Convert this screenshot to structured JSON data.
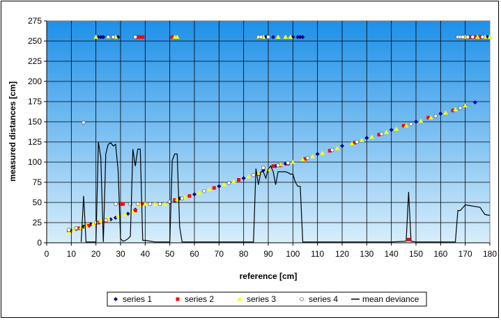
{
  "chart_data": {
    "type": "scatter",
    "title": "",
    "xlabel": "reference [cm]",
    "ylabel": "measured distances [cm]",
    "xlim": [
      0,
      180
    ],
    "ylim": [
      0,
      275
    ],
    "xticks": [
      0,
      10,
      20,
      30,
      40,
      50,
      60,
      70,
      80,
      90,
      100,
      110,
      120,
      130,
      140,
      150,
      160,
      170,
      180
    ],
    "yticks": [
      0,
      25,
      50,
      75,
      100,
      125,
      150,
      175,
      200,
      225,
      250,
      275
    ],
    "grid": true,
    "legend_position": "bottom",
    "background_gradient": [
      "#1e90e8",
      "#d8eefb"
    ],
    "series": [
      {
        "name": "series 1",
        "marker": "diamond",
        "color": "#00008b",
        "points": [
          [
            9,
            14
          ],
          [
            10,
            15
          ],
          [
            12,
            17
          ],
          [
            15,
            20
          ],
          [
            18,
            23
          ],
          [
            20,
            25
          ],
          [
            26,
            29
          ],
          [
            28,
            31
          ],
          [
            30,
            48
          ],
          [
            33,
            36
          ],
          [
            36,
            41
          ],
          [
            50,
            50
          ],
          [
            52,
            52
          ],
          [
            54,
            55
          ],
          [
            60,
            60
          ],
          [
            70,
            70
          ],
          [
            80,
            80
          ],
          [
            88,
            90
          ],
          [
            93,
            95
          ],
          [
            97,
            98
          ],
          [
            100,
            100
          ],
          [
            110,
            110
          ],
          [
            120,
            120
          ],
          [
            130,
            130
          ],
          [
            140,
            140
          ],
          [
            150,
            150
          ],
          [
            160,
            160
          ],
          [
            170,
            170
          ],
          [
            174,
            174
          ],
          [
            21,
            255
          ],
          [
            22,
            255
          ],
          [
            23,
            255
          ],
          [
            27,
            255
          ],
          [
            29,
            255
          ],
          [
            89,
            255
          ],
          [
            92,
            255
          ],
          [
            100,
            255
          ],
          [
            102,
            255
          ],
          [
            103,
            255
          ],
          [
            104,
            255
          ],
          [
            176,
            255
          ],
          [
            179,
            255
          ]
        ]
      },
      {
        "name": "series 2",
        "marker": "square",
        "color": "#ff0000",
        "points": [
          [
            9,
            15
          ],
          [
            13,
            18
          ],
          [
            17,
            21
          ],
          [
            21,
            25
          ],
          [
            24,
            27
          ],
          [
            30,
            48
          ],
          [
            31,
            48
          ],
          [
            36,
            40
          ],
          [
            39,
            48
          ],
          [
            52,
            53
          ],
          [
            58,
            58
          ],
          [
            68,
            68
          ],
          [
            78,
            78
          ],
          [
            86,
            85
          ],
          [
            92,
            95
          ],
          [
            95,
            96
          ],
          [
            98,
            98
          ],
          [
            105,
            104
          ],
          [
            115,
            114
          ],
          [
            125,
            124
          ],
          [
            135,
            134
          ],
          [
            145,
            145
          ],
          [
            147,
            4
          ],
          [
            155,
            155
          ],
          [
            165,
            164
          ],
          [
            37,
            255
          ],
          [
            38,
            255
          ],
          [
            39,
            255
          ],
          [
            51,
            255
          ],
          [
            170,
            255
          ],
          [
            172,
            255
          ],
          [
            174,
            255
          ],
          [
            176,
            255
          ]
        ]
      },
      {
        "name": "series 3",
        "marker": "triangle",
        "color": "#ffff00",
        "points": [
          [
            9,
            13
          ],
          [
            11,
            16
          ],
          [
            14,
            19
          ],
          [
            16,
            21
          ],
          [
            19,
            24
          ],
          [
            22,
            27
          ],
          [
            25,
            30
          ],
          [
            29,
            33
          ],
          [
            32,
            35
          ],
          [
            35,
            38
          ],
          [
            38,
            47
          ],
          [
            40,
            48
          ],
          [
            44,
            48
          ],
          [
            48,
            48
          ],
          [
            53,
            54
          ],
          [
            56,
            56
          ],
          [
            62,
            62
          ],
          [
            66,
            66
          ],
          [
            72,
            72
          ],
          [
            76,
            76
          ],
          [
            82,
            82
          ],
          [
            86,
            86
          ],
          [
            90,
            91
          ],
          [
            95,
            97
          ],
          [
            100,
            100
          ],
          [
            104,
            103
          ],
          [
            108,
            107
          ],
          [
            112,
            111
          ],
          [
            118,
            117
          ],
          [
            124,
            123
          ],
          [
            128,
            127
          ],
          [
            132,
            131
          ],
          [
            138,
            137
          ],
          [
            142,
            141
          ],
          [
            146,
            145
          ],
          [
            152,
            151
          ],
          [
            156,
            155
          ],
          [
            162,
            161
          ],
          [
            166,
            165
          ],
          [
            170,
            170
          ],
          [
            20,
            255
          ],
          [
            25,
            255
          ],
          [
            28,
            255
          ],
          [
            52,
            255
          ],
          [
            53,
            255
          ],
          [
            86,
            255
          ],
          [
            88,
            255
          ],
          [
            94,
            255
          ],
          [
            97,
            255
          ],
          [
            99,
            255
          ],
          [
            170,
            255
          ],
          [
            175,
            255
          ],
          [
            178,
            255
          ],
          [
            180,
            255
          ]
        ]
      },
      {
        "name": "series 4",
        "marker": "circle",
        "color": "#ffffff",
        "points": [
          [
            9,
            16
          ],
          [
            12,
            18
          ],
          [
            15,
            149
          ],
          [
            20,
            25
          ],
          [
            24,
            28
          ],
          [
            28,
            48
          ],
          [
            34,
            48
          ],
          [
            37,
            48
          ],
          [
            42,
            48
          ],
          [
            46,
            48
          ],
          [
            50,
            51
          ],
          [
            55,
            55
          ],
          [
            64,
            64
          ],
          [
            74,
            74
          ],
          [
            84,
            84
          ],
          [
            88,
            93
          ],
          [
            94,
            96
          ],
          [
            98,
            99
          ],
          [
            106,
            105
          ],
          [
            116,
            115
          ],
          [
            126,
            125
          ],
          [
            136,
            135
          ],
          [
            148,
            147
          ],
          [
            158,
            157
          ],
          [
            168,
            167
          ],
          [
            25,
            255
          ],
          [
            27,
            255
          ],
          [
            36,
            255
          ],
          [
            86,
            255
          ],
          [
            87,
            255
          ],
          [
            90,
            255
          ],
          [
            167,
            255
          ],
          [
            168,
            255
          ],
          [
            169,
            255
          ],
          [
            171,
            255
          ],
          [
            173,
            255
          ],
          [
            177,
            255
          ]
        ]
      },
      {
        "name": "mean deviance",
        "type": "line",
        "color": "#000000",
        "x": [
          14,
          15,
          16,
          20,
          21,
          22,
          23,
          24,
          25,
          26,
          27,
          28,
          29,
          30,
          31,
          32,
          33,
          34,
          35,
          36,
          37,
          38,
          39,
          40,
          44,
          48,
          50,
          51,
          52,
          53,
          54,
          55,
          60,
          80,
          84,
          85,
          86,
          87,
          88,
          89,
          90,
          91,
          92,
          93,
          94,
          95,
          96,
          97,
          98,
          99,
          100,
          101,
          102,
          103,
          104,
          110,
          130,
          140,
          146,
          147,
          148,
          150,
          160,
          165,
          166,
          167,
          168,
          170,
          172,
          174,
          176,
          178,
          180
        ],
        "y": [
          1,
          58,
          1,
          1,
          125,
          105,
          1,
          110,
          122,
          124,
          120,
          122,
          90,
          5,
          2,
          3,
          5,
          8,
          116,
          95,
          116,
          116,
          3,
          3,
          1,
          1,
          1,
          102,
          110,
          110,
          20,
          1,
          1,
          1,
          1,
          92,
          72,
          88,
          88,
          80,
          92,
          95,
          88,
          72,
          88,
          88,
          88,
          88,
          87,
          85,
          85,
          75,
          70,
          70,
          1,
          1,
          1,
          1,
          2,
          63,
          2,
          1,
          1,
          1,
          1,
          40,
          40,
          47,
          46,
          45,
          44,
          35,
          34
        ]
      }
    ]
  }
}
